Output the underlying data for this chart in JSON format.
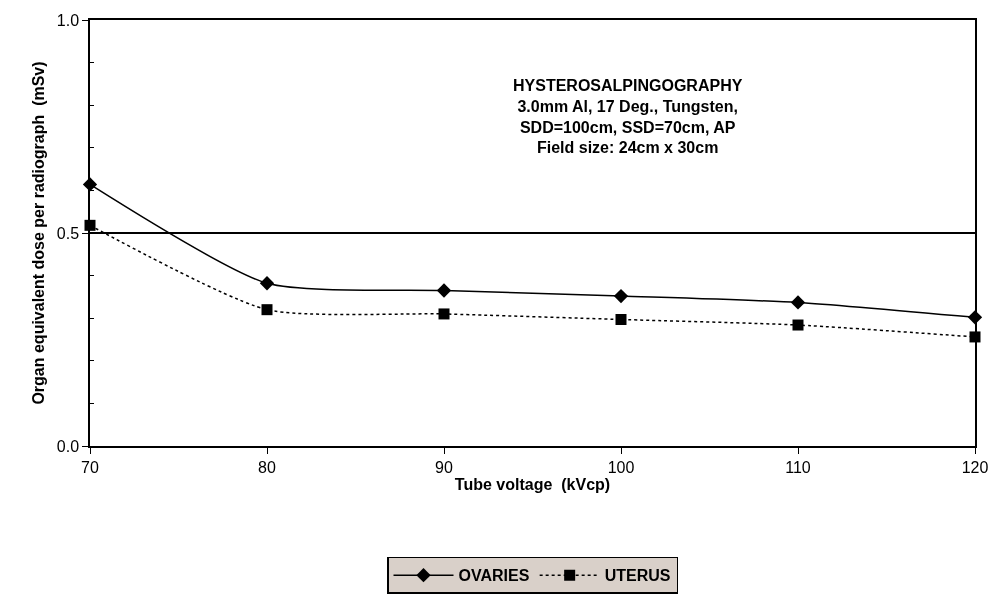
{
  "chart_data": {
    "type": "line",
    "xlabel": "Tube voltage  (kVcp)",
    "ylabel": "Organ equivalent dose per radiograph  (mSv)",
    "annotations": [
      "HYSTEROSALPINGOGRAPHY\n3.0mm Al, 17 Deg., Tungsten,\nSDD=100cm, SSD=70cm, AP\nField size: 24cm x 30cm"
    ],
    "x": [
      70,
      80,
      90,
      100,
      110,
      120
    ],
    "series": [
      {
        "name": "OVARIES",
        "color": "#000000",
        "marker": "diamond",
        "line_style": "solid",
        "values": [
          0.614,
          0.382,
          0.365,
          0.352,
          0.337,
          0.302
        ]
      },
      {
        "name": "UTERUS",
        "color": "#000000",
        "marker": "square",
        "line_style": "dotted",
        "values": [
          0.518,
          0.32,
          0.31,
          0.297,
          0.284,
          0.256
        ]
      }
    ],
    "xlim": [
      70,
      120
    ],
    "xticks": [
      70,
      80,
      90,
      100,
      110,
      120
    ],
    "ylim": [
      0,
      1.0
    ],
    "yticks": [
      {
        "value": 0,
        "label": "0.0"
      },
      {
        "value": 0.1,
        "label": null
      },
      {
        "value": 0.2,
        "label": null
      },
      {
        "value": 0.3,
        "label": null
      },
      {
        "value": 0.4,
        "label": null
      },
      {
        "value": 0.5,
        "label": "0.5"
      },
      {
        "value": 0.6,
        "label": null
      },
      {
        "value": 0.7,
        "label": null
      },
      {
        "value": 0.8,
        "label": null
      },
      {
        "value": 0.9,
        "label": null
      },
      {
        "value": 1.0,
        "label": "1.0"
      }
    ],
    "grid": "y",
    "legend": "bottom"
  }
}
